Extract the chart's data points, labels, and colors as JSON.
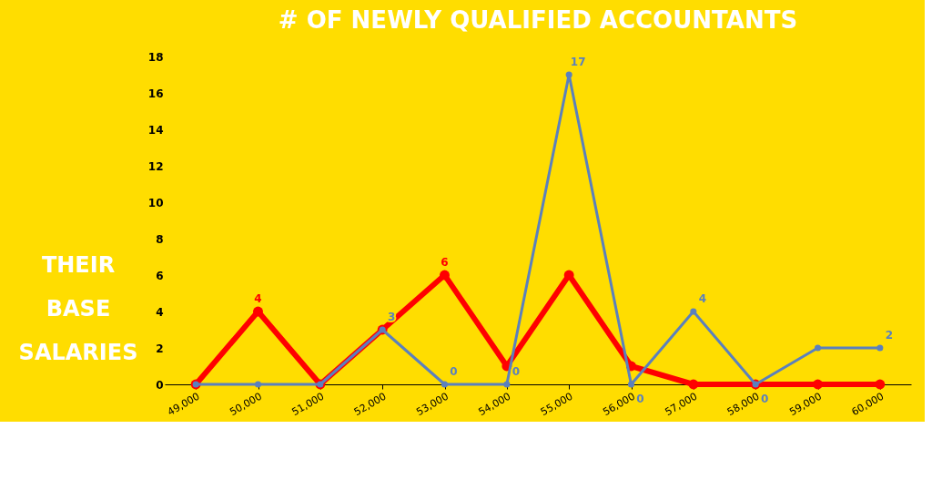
{
  "chart_data": {
    "type": "line",
    "title": "# OF NEWLY QUALIFIED ACCOUNTANTS",
    "annotations": [
      "THEIR BASE SALARIES"
    ],
    "categories": [
      "49,000",
      "50,000",
      "51,000",
      "52,000",
      "53,000",
      "54,000",
      "55,000",
      "56,000",
      "57,000",
      "58,000",
      "59,000",
      "60,000"
    ],
    "series": [
      {
        "color": "#ff0000",
        "values": [
          0,
          4,
          0,
          3,
          6,
          1,
          6,
          1,
          0,
          0,
          0,
          0
        ],
        "value_labels": [
          null,
          "4",
          null,
          null,
          "6",
          null,
          null,
          null,
          null,
          null,
          null,
          null
        ]
      },
      {
        "color": "#5b80bd",
        "values": [
          0,
          0,
          0,
          3,
          0,
          0,
          17,
          0,
          4,
          0,
          2,
          2
        ],
        "value_labels": [
          null,
          null,
          null,
          "3",
          "0",
          "0",
          "17",
          "0",
          "4",
          "0",
          null,
          "2"
        ]
      }
    ],
    "ylim": [
      0,
      18
    ],
    "yticks": [
      0,
      2,
      4,
      6,
      8,
      10,
      12,
      14,
      16,
      18
    ],
    "grid": false,
    "marker": "circle",
    "line_style": "solid"
  }
}
